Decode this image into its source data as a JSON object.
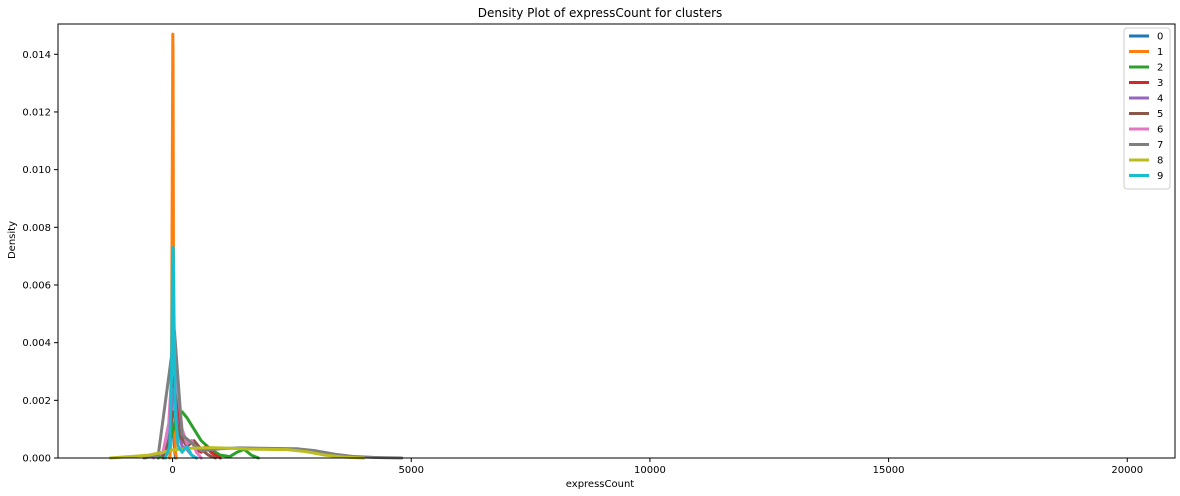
{
  "chart_data": {
    "type": "line",
    "title": "Density Plot of expressCount for clusters",
    "xlabel": "expressCount",
    "ylabel": "Density",
    "xlim": [
      -2400,
      21000
    ],
    "ylim": [
      0,
      0.01505
    ],
    "xticks": [
      0,
      5000,
      10000,
      15000,
      20000
    ],
    "xtick_labels": [
      "0",
      "5000",
      "10000",
      "15000",
      "20000"
    ],
    "yticks": [
      0,
      0.002,
      0.004,
      0.006,
      0.008,
      0.01,
      0.012,
      0.014
    ],
    "ytick_labels": [
      "0.000",
      "0.002",
      "0.004",
      "0.006",
      "0.008",
      "0.010",
      "0.012",
      "0.014"
    ],
    "grid": false,
    "legend_position": "top-right",
    "series": [
      {
        "name": "0",
        "color": "#1f77b4",
        "x": [
          -60,
          -40,
          -20,
          0,
          20,
          40,
          60
        ],
        "y": [
          0.0,
          0.0004,
          0.0012,
          0.0016,
          0.0012,
          0.0004,
          0.0
        ]
      },
      {
        "name": "1",
        "color": "#ff7f0e",
        "x": [
          -60,
          -40,
          -20,
          0,
          5,
          10,
          20,
          40,
          60,
          80
        ],
        "y": [
          0.0,
          0.0004,
          0.004,
          0.0125,
          0.0147,
          0.014,
          0.006,
          0.001,
          0.0002,
          0.0
        ]
      },
      {
        "name": "2",
        "color": "#2ca02c",
        "x": [
          -300,
          -150,
          0,
          100,
          200,
          300,
          450,
          600,
          800,
          1000,
          1200,
          1350,
          1500,
          1650,
          1800
        ],
        "y": [
          0.0,
          0.0002,
          0.0009,
          0.0015,
          0.0016,
          0.0014,
          0.001,
          0.0006,
          0.0003,
          0.0001,
          5e-05,
          0.0002,
          0.0003,
          0.0001,
          0.0
        ]
      },
      {
        "name": "3",
        "color": "#d62728",
        "x": [
          -150,
          -60,
          0,
          40,
          100,
          200,
          300,
          400,
          500,
          600,
          700,
          800,
          900,
          1000
        ],
        "y": [
          0.0,
          0.0008,
          0.0026,
          0.0028,
          0.0018,
          0.0008,
          0.0005,
          0.0006,
          0.0003,
          0.0002,
          0.0004,
          0.0002,
          0.0001,
          0.0
        ]
      },
      {
        "name": "4",
        "color": "#9467bd",
        "x": [
          -150,
          -60,
          0,
          40,
          100,
          200,
          300,
          400,
          500
        ],
        "y": [
          0.0,
          0.0008,
          0.0024,
          0.0022,
          0.0012,
          0.0004,
          0.0003,
          0.0001,
          0.0
        ]
      },
      {
        "name": "5",
        "color": "#8c564b",
        "x": [
          -200,
          -80,
          0,
          60,
          150,
          300,
          450,
          600,
          750,
          900
        ],
        "y": [
          0.0,
          0.0006,
          0.0016,
          0.0014,
          0.0008,
          0.0004,
          0.0006,
          0.0003,
          0.0001,
          0.0
        ]
      },
      {
        "name": "6",
        "color": "#e377c2",
        "x": [
          -400,
          -200,
          -80,
          0,
          40,
          100,
          200,
          300,
          400,
          500,
          600
        ],
        "y": [
          0.0,
          0.0002,
          0.0012,
          0.0034,
          0.0036,
          0.0025,
          0.001,
          0.0005,
          0.0006,
          0.0002,
          0.0
        ]
      },
      {
        "name": "7",
        "color": "#7f7f7f",
        "x": [
          -600,
          -300,
          0,
          40,
          200,
          600,
          1000,
          1400,
          1800,
          2200,
          2600,
          3000,
          3400,
          3800,
          4200,
          4800
        ],
        "y": [
          0.0,
          0.0001,
          0.0038,
          0.0044,
          0.0008,
          0.00025,
          0.00032,
          0.00035,
          0.00034,
          0.00033,
          0.00032,
          0.00025,
          0.00013,
          5e-05,
          2e-05,
          0.0
        ]
      },
      {
        "name": "8",
        "color": "#bcbd22",
        "x": [
          -1300,
          -900,
          -500,
          -200,
          0,
          400,
          800,
          1200,
          1600,
          2000,
          2400,
          2800,
          3200,
          3600,
          4000
        ],
        "y": [
          0.0,
          5e-05,
          0.0001,
          0.0002,
          0.00028,
          0.00034,
          0.00036,
          0.00034,
          0.00031,
          0.0003,
          0.00029,
          0.00022,
          0.0001,
          3e-05,
          0.0
        ]
      },
      {
        "name": "9",
        "color": "#17becf",
        "x": [
          -150,
          -60,
          -20,
          0,
          15,
          30,
          60,
          120,
          200,
          300,
          400,
          500
        ],
        "y": [
          0.0,
          0.0004,
          0.003,
          0.0072,
          0.0073,
          0.005,
          0.0015,
          0.0004,
          0.0002,
          0.0004,
          0.0001,
          0.0
        ]
      }
    ]
  }
}
